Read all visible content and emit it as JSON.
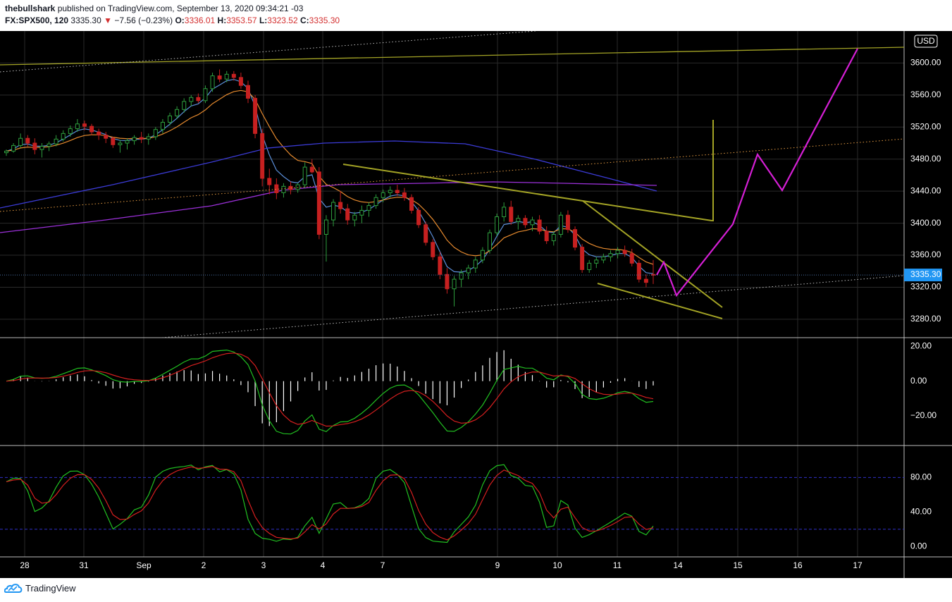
{
  "header": {
    "author": "thebullshark",
    "published": "published on TradingView.com, September 13, 2020 09:34:21 -03",
    "symbol": "FX:SPX500, 120",
    "last": "3335.30",
    "change": "−7.56 (−0.23%)",
    "o_label": "O:",
    "o_value": "3336.01",
    "h_label": "H:",
    "h_value": "3353.57",
    "l_label": "L:",
    "l_value": "3323.52",
    "c_label": "C:",
    "c_value": "3335.30"
  },
  "footer": {
    "brand": "TradingView"
  },
  "chart_data": [
    {
      "type": "candlestick",
      "currency": "USD",
      "last_price_label": "3335.30",
      "y_ticks": [
        "3600.00",
        "3560.00",
        "3520.00",
        "3480.00",
        "3440.00",
        "3400.00",
        "3360.00",
        "3320.00",
        "3280.00"
      ],
      "ylim": [
        3257,
        3640
      ],
      "x_ticks": [
        "28",
        "31",
        "Sep",
        "2",
        "3",
        "4",
        "7",
        "9",
        "10",
        "11",
        "14",
        "15",
        "16",
        "17"
      ],
      "candles": [
        [
          3488,
          3492,
          3484,
          3490
        ],
        [
          3490,
          3500,
          3488,
          3497
        ],
        [
          3497,
          3512,
          3494,
          3506
        ],
        [
          3506,
          3510,
          3496,
          3500
        ],
        [
          3500,
          3506,
          3486,
          3492
        ],
        [
          3492,
          3500,
          3482,
          3496
        ],
        [
          3496,
          3502,
          3490,
          3499
        ],
        [
          3499,
          3510,
          3496,
          3505
        ],
        [
          3505,
          3516,
          3502,
          3512
        ],
        [
          3512,
          3522,
          3508,
          3518
        ],
        [
          3518,
          3530,
          3514,
          3524
        ],
        [
          3524,
          3528,
          3516,
          3521
        ],
        [
          3521,
          3524,
          3510,
          3514
        ],
        [
          3514,
          3518,
          3504,
          3510
        ],
        [
          3510,
          3514,
          3500,
          3506
        ],
        [
          3506,
          3508,
          3494,
          3498
        ],
        [
          3498,
          3504,
          3488,
          3500
        ],
        [
          3500,
          3506,
          3492,
          3503
        ],
        [
          3503,
          3510,
          3498,
          3507
        ],
        [
          3507,
          3514,
          3500,
          3505
        ],
        [
          3505,
          3512,
          3498,
          3508
        ],
        [
          3508,
          3520,
          3504,
          3517
        ],
        [
          3517,
          3530,
          3512,
          3526
        ],
        [
          3526,
          3538,
          3522,
          3534
        ],
        [
          3534,
          3546,
          3530,
          3542
        ],
        [
          3542,
          3556,
          3538,
          3552
        ],
        [
          3552,
          3560,
          3546,
          3557
        ],
        [
          3557,
          3562,
          3550,
          3553
        ],
        [
          3553,
          3572,
          3550,
          3568
        ],
        [
          3568,
          3588,
          3564,
          3584
        ],
        [
          3584,
          3592,
          3576,
          3580
        ],
        [
          3580,
          3590,
          3576,
          3586
        ],
        [
          3586,
          3590,
          3578,
          3582
        ],
        [
          3582,
          3588,
          3568,
          3572
        ],
        [
          3572,
          3578,
          3550,
          3556
        ],
        [
          3556,
          3560,
          3506,
          3512
        ],
        [
          3512,
          3518,
          3446,
          3456
        ],
        [
          3456,
          3468,
          3436,
          3448
        ],
        [
          3448,
          3456,
          3430,
          3438
        ],
        [
          3438,
          3450,
          3432,
          3446
        ],
        [
          3446,
          3452,
          3436,
          3442
        ],
        [
          3442,
          3450,
          3438,
          3448
        ],
        [
          3448,
          3476,
          3444,
          3470
        ],
        [
          3470,
          3480,
          3462,
          3464
        ],
        [
          3464,
          3470,
          3380,
          3386
        ],
        [
          3386,
          3410,
          3352,
          3404
        ],
        [
          3404,
          3430,
          3396,
          3426
        ],
        [
          3426,
          3440,
          3412,
          3418
        ],
        [
          3418,
          3424,
          3398,
          3404
        ],
        [
          3404,
          3414,
          3396,
          3410
        ],
        [
          3410,
          3422,
          3400,
          3416
        ],
        [
          3416,
          3426,
          3408,
          3422
        ],
        [
          3422,
          3436,
          3418,
          3432
        ],
        [
          3432,
          3442,
          3426,
          3438
        ],
        [
          3438,
          3446,
          3432,
          3441
        ],
        [
          3441,
          3448,
          3434,
          3438
        ],
        [
          3438,
          3444,
          3428,
          3432
        ],
        [
          3432,
          3436,
          3412,
          3416
        ],
        [
          3416,
          3420,
          3394,
          3398
        ],
        [
          3398,
          3402,
          3372,
          3376
        ],
        [
          3376,
          3380,
          3354,
          3358
        ],
        [
          3358,
          3364,
          3330,
          3336
        ],
        [
          3336,
          3344,
          3312,
          3318
        ],
        [
          3318,
          3334,
          3296,
          3330
        ],
        [
          3330,
          3342,
          3320,
          3338
        ],
        [
          3338,
          3348,
          3330,
          3344
        ],
        [
          3344,
          3358,
          3338,
          3354
        ],
        [
          3354,
          3370,
          3350,
          3366
        ],
        [
          3366,
          3392,
          3362,
          3388
        ],
        [
          3388,
          3412,
          3384,
          3408
        ],
        [
          3408,
          3426,
          3402,
          3420
        ],
        [
          3420,
          3428,
          3398,
          3402
        ],
        [
          3402,
          3410,
          3392,
          3406
        ],
        [
          3406,
          3410,
          3394,
          3398
        ],
        [
          3398,
          3408,
          3390,
          3404
        ],
        [
          3404,
          3410,
          3386,
          3390
        ],
        [
          3390,
          3396,
          3374,
          3378
        ],
        [
          3378,
          3390,
          3372,
          3386
        ],
        [
          3386,
          3414,
          3382,
          3410
        ],
        [
          3410,
          3416,
          3388,
          3392
        ],
        [
          3392,
          3396,
          3366,
          3370
        ],
        [
          3370,
          3374,
          3338,
          3342
        ],
        [
          3342,
          3354,
          3338,
          3350
        ],
        [
          3350,
          3358,
          3344,
          3354
        ],
        [
          3354,
          3362,
          3350,
          3358
        ],
        [
          3358,
          3366,
          3352,
          3362
        ],
        [
          3362,
          3370,
          3356,
          3366
        ],
        [
          3366,
          3372,
          3358,
          3362
        ],
        [
          3362,
          3368,
          3346,
          3350
        ],
        [
          3350,
          3354,
          3326,
          3330
        ],
        [
          3330,
          3336,
          3320,
          3326
        ],
        [
          3336,
          3354,
          3324,
          3335
        ]
      ]
    },
    {
      "type": "macd",
      "y_ticks": [
        "20.00",
        "0.00",
        "−20.00"
      ],
      "ylim": [
        -37,
        25
      ]
    },
    {
      "type": "stochastic",
      "y_ticks": [
        "80.00",
        "40.00",
        "0.00"
      ],
      "ylim": [
        -12,
        117
      ],
      "levels": [
        80,
        20
      ]
    }
  ]
}
